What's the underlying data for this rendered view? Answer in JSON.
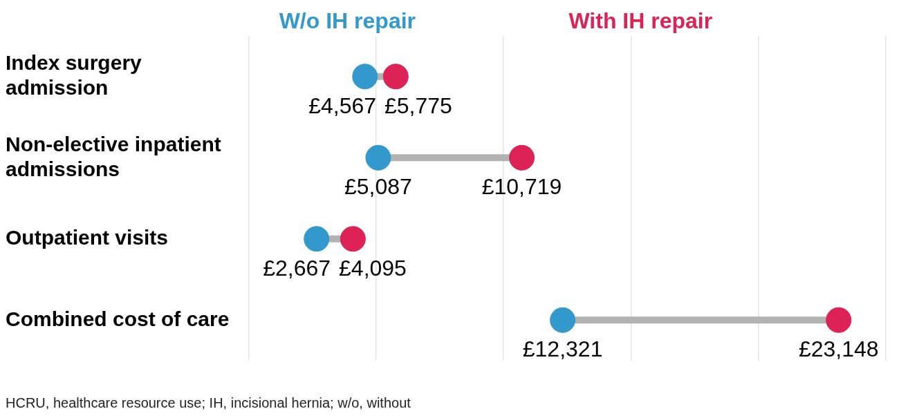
{
  "chart_data": {
    "type": "scatter",
    "orientation": "horizontal",
    "categories": [
      "Index surgery admission",
      "Non-elective inpatient admissions",
      "Outpatient visits",
      "Combined cost of care"
    ],
    "series": [
      {
        "name": "W/o IH repair",
        "color": "#3399cc",
        "values": [
          4567,
          5087,
          2667,
          12321
        ],
        "value_labels": [
          "£4,567",
          "£5,087",
          "£2,667",
          "£12,321"
        ]
      },
      {
        "name": "With IH repair",
        "color": "#dd2255",
        "values": [
          5775,
          10719,
          4095,
          23148
        ],
        "value_labels": [
          "£5,775",
          "£10,719",
          "£4,095",
          "£23,148"
        ]
      }
    ],
    "xlim": [
      0,
      25000
    ],
    "xticks": [
      {
        "value": 0,
        "label": null
      },
      {
        "value": 5000,
        "label": null
      },
      {
        "value": 10000,
        "label": null
      },
      {
        "value": 15000,
        "label": null
      },
      {
        "value": 20000,
        "label": null
      },
      {
        "value": 25000,
        "label": null
      }
    ],
    "grid": "x",
    "tick_labels": "y",
    "legend": "top",
    "marker": "circle",
    "annotations": [
      "HCRU, healthcare resource use; IH, incisional hernia; w/o, without"
    ]
  }
}
